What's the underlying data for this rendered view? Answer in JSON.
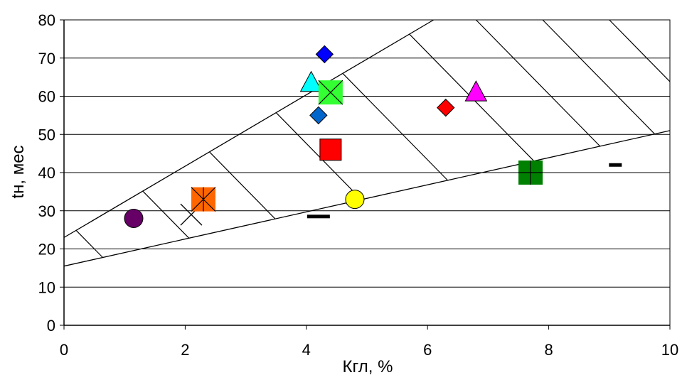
{
  "chart_data": {
    "type": "scatter",
    "title": "",
    "xlabel": "Кгл, %",
    "ylabel": "tн, мес",
    "xlim": [
      0,
      10
    ],
    "ylim": [
      0,
      80
    ],
    "x_ticks": [
      0,
      2,
      4,
      6,
      8,
      10
    ],
    "y_ticks": [
      0,
      10,
      20,
      30,
      40,
      50,
      60,
      70,
      80
    ],
    "grid": "horizontal",
    "legend": "none",
    "band": {
      "upper_line": {
        "x": [
          0,
          6.1
        ],
        "y": [
          23,
          80
        ]
      },
      "lower_line": {
        "x": [
          0,
          10
        ],
        "y": [
          15.5,
          51
        ]
      },
      "hatch": true
    },
    "points": [
      {
        "x": 1.15,
        "y": 28,
        "marker": "circle",
        "color": "#660066"
      },
      {
        "x": 2.1,
        "y": 29,
        "marker": "x",
        "color": "#000000"
      },
      {
        "x": 2.3,
        "y": 33,
        "marker": "square-asterisk",
        "color": "#ff6600"
      },
      {
        "x": 4.3,
        "y": 71,
        "marker": "diamond",
        "color": "#0000ff"
      },
      {
        "x": 4.08,
        "y": 63.5,
        "marker": "triangle",
        "color": "#00ffff"
      },
      {
        "x": 4.4,
        "y": 61,
        "marker": "square-x",
        "color": "#33ff33"
      },
      {
        "x": 4.2,
        "y": 55,
        "marker": "diamond",
        "color": "#0066cc"
      },
      {
        "x": 4.4,
        "y": 46,
        "marker": "square",
        "color": "#ff0000"
      },
      {
        "x": 4.2,
        "y": 28.5,
        "marker": "dash",
        "color": "#000000"
      },
      {
        "x": 4.8,
        "y": 33,
        "marker": "circle",
        "color": "#ffff00"
      },
      {
        "x": 6.3,
        "y": 57,
        "marker": "diamond",
        "color": "#ff0000"
      },
      {
        "x": 6.8,
        "y": 61,
        "marker": "triangle",
        "color": "#ff00ff"
      },
      {
        "x": 7.7,
        "y": 40,
        "marker": "square-plus",
        "color": "#008000"
      },
      {
        "x": 9.1,
        "y": 42,
        "marker": "dash",
        "color": "#000000"
      }
    ]
  }
}
